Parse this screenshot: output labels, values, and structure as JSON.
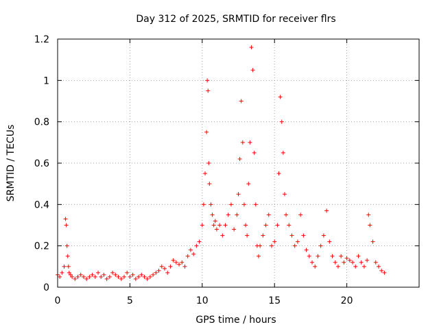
{
  "chart_data": {
    "type": "scatter",
    "title": "Day 312 of 2025, SRMTID for receiver flrs",
    "xlabel": "GPS time / hours",
    "ylabel": "SRMTID / TECUs",
    "xlim": [
      0,
      25
    ],
    "ylim": [
      0,
      1.2
    ],
    "xticks": [
      0,
      5,
      10,
      15,
      20
    ],
    "xtick_labels": [
      "0",
      "5",
      "10",
      "15",
      "20"
    ],
    "yticks": [
      0,
      0.2,
      0.4,
      0.6,
      0.8,
      1.0,
      1.2
    ],
    "ytick_labels": [
      "0",
      "0.2",
      "0.4",
      "0.6",
      "0.8",
      "1",
      "1.2"
    ],
    "grid": true,
    "marker": "+",
    "marker_color": "#ff0000",
    "series": [
      {
        "name": "SRMTID",
        "x": [
          0.0,
          0.15,
          0.3,
          0.45,
          0.55,
          0.6,
          0.65,
          0.7,
          0.75,
          0.8,
          0.9,
          1.0,
          1.2,
          1.4,
          1.6,
          1.8,
          2.0,
          2.2,
          2.4,
          2.6,
          2.8,
          3.0,
          3.2,
          3.4,
          3.6,
          3.8,
          4.0,
          4.2,
          4.4,
          4.6,
          4.8,
          5.0,
          5.2,
          5.4,
          5.6,
          5.8,
          6.0,
          6.2,
          6.4,
          6.6,
          6.8,
          7.0,
          7.2,
          7.4,
          7.6,
          7.8,
          8.0,
          8.2,
          8.4,
          8.6,
          8.8,
          9.0,
          9.2,
          9.4,
          9.6,
          9.8,
          10.0,
          10.1,
          10.2,
          10.3,
          10.35,
          10.4,
          10.45,
          10.5,
          10.6,
          10.7,
          10.8,
          10.9,
          11.0,
          11.2,
          11.4,
          11.6,
          11.8,
          12.0,
          12.2,
          12.4,
          12.5,
          12.6,
          12.7,
          12.8,
          12.9,
          13.0,
          13.1,
          13.2,
          13.3,
          13.4,
          13.5,
          13.6,
          13.7,
          13.8,
          13.9,
          14.0,
          14.2,
          14.4,
          14.6,
          14.8,
          15.0,
          15.2,
          15.3,
          15.4,
          15.5,
          15.6,
          15.7,
          15.8,
          16.0,
          16.2,
          16.4,
          16.6,
          16.8,
          17.0,
          17.2,
          17.4,
          17.6,
          17.8,
          18.0,
          18.2,
          18.4,
          18.6,
          18.8,
          19.0,
          19.2,
          19.4,
          19.6,
          19.8,
          20.0,
          20.2,
          20.4,
          20.6,
          20.8,
          21.0,
          21.2,
          21.4,
          21.5,
          21.6,
          21.8,
          22.0,
          22.2,
          22.4,
          22.6
        ],
        "y": [
          0.06,
          0.05,
          0.07,
          0.1,
          0.33,
          0.3,
          0.2,
          0.15,
          0.1,
          0.07,
          0.06,
          0.05,
          0.04,
          0.05,
          0.06,
          0.05,
          0.04,
          0.05,
          0.06,
          0.05,
          0.07,
          0.05,
          0.06,
          0.04,
          0.05,
          0.07,
          0.06,
          0.05,
          0.04,
          0.05,
          0.07,
          0.05,
          0.06,
          0.04,
          0.05,
          0.06,
          0.05,
          0.04,
          0.05,
          0.06,
          0.07,
          0.08,
          0.1,
          0.09,
          0.07,
          0.1,
          0.13,
          0.12,
          0.11,
          0.12,
          0.1,
          0.15,
          0.18,
          0.16,
          0.2,
          0.22,
          0.3,
          0.4,
          0.55,
          0.75,
          1.0,
          0.95,
          0.6,
          0.5,
          0.4,
          0.35,
          0.3,
          0.32,
          0.28,
          0.3,
          0.25,
          0.3,
          0.35,
          0.4,
          0.28,
          0.35,
          0.45,
          0.62,
          0.9,
          0.7,
          0.4,
          0.3,
          0.25,
          0.5,
          0.7,
          1.16,
          1.05,
          0.65,
          0.4,
          0.2,
          0.15,
          0.2,
          0.25,
          0.3,
          0.35,
          0.2,
          0.22,
          0.3,
          0.55,
          0.92,
          0.8,
          0.65,
          0.45,
          0.35,
          0.3,
          0.25,
          0.2,
          0.22,
          0.35,
          0.25,
          0.18,
          0.15,
          0.12,
          0.1,
          0.15,
          0.2,
          0.25,
          0.37,
          0.22,
          0.15,
          0.12,
          0.1,
          0.15,
          0.12,
          0.14,
          0.13,
          0.12,
          0.1,
          0.15,
          0.12,
          0.1,
          0.13,
          0.35,
          0.3,
          0.22,
          0.12,
          0.1,
          0.08,
          0.07
        ]
      }
    ]
  }
}
